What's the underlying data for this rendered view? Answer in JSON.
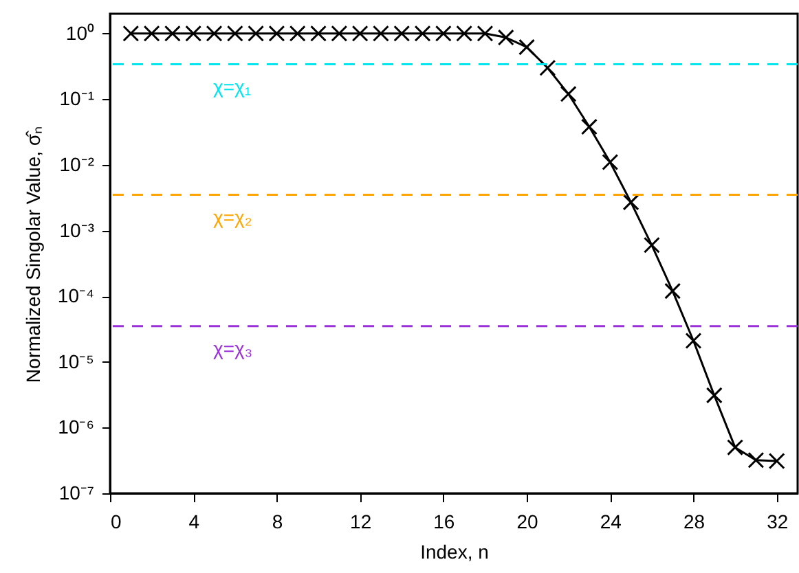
{
  "chart_data": {
    "type": "line",
    "xlabel": "Index, n",
    "ylabel": "Normalized Singolar Value, σ̂ₙ",
    "x": [
      1,
      2,
      3,
      4,
      5,
      6,
      7,
      8,
      9,
      10,
      11,
      12,
      13,
      14,
      15,
      16,
      17,
      18,
      19,
      20,
      21,
      22,
      23,
      24,
      25,
      26,
      27,
      28,
      29,
      30,
      31,
      32
    ],
    "series": [
      {
        "color": "#000000",
        "values": [
          1,
          1,
          1,
          1,
          1,
          1,
          1,
          1,
          1,
          1,
          1,
          1,
          1,
          1,
          1,
          1,
          1,
          1,
          0.87,
          0.62,
          0.3,
          0.12,
          0.038,
          0.011,
          0.0027,
          0.0006,
          0.00012,
          2.1e-05,
          3.1e-06,
          5e-07,
          3.2e-07,
          3.1e-07
        ]
      }
    ],
    "log": "y",
    "xlim": [
      0,
      33
    ],
    "xticks": [
      0,
      4,
      8,
      12,
      16,
      20,
      24,
      28,
      32
    ],
    "ylim": [
      1e-07,
      2
    ],
    "yticks": [
      {
        "value": 1,
        "label": "10⁰"
      },
      {
        "value": 0.1,
        "label": "10⁻¹"
      },
      {
        "value": 0.01,
        "label": "10⁻²"
      },
      {
        "value": 0.001,
        "label": "10⁻³"
      },
      {
        "value": 0.0001,
        "label": "10⁻⁴"
      },
      {
        "value": 1e-05,
        "label": "10⁻⁵"
      },
      {
        "value": 1e-06,
        "label": "10⁻⁶"
      },
      {
        "value": 1e-07,
        "label": "10⁻⁷"
      }
    ],
    "ref_lines": [
      {
        "axis": "y",
        "value": 0.34,
        "label": "χ=χ₁",
        "color": "#00e5ee",
        "line_style": "dashed"
      },
      {
        "axis": "y",
        "value": 0.0035,
        "label": "χ=χ₂",
        "color": "#ffa500",
        "line_style": "dashed"
      },
      {
        "axis": "y",
        "value": 3.5e-05,
        "label": "χ=χ₃",
        "color": "#9b30d9",
        "line_style": "dashed"
      }
    ],
    "grid": false,
    "marker": "cross",
    "line_style": "solid"
  }
}
